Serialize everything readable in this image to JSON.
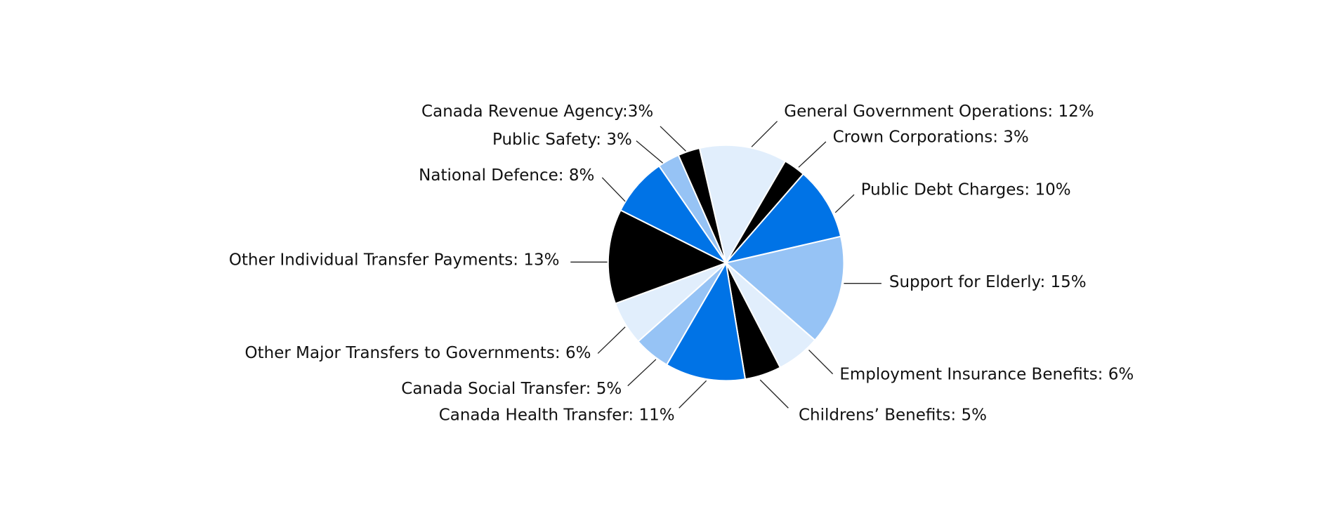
{
  "chart_data": {
    "type": "pie",
    "labels": [
      "General Government Operations: 12%",
      "Crown Corporations: 3%",
      "Public Debt Charges: 10%",
      "Support for Elderly: 15%",
      "Employment Insurance Benefits: 6%",
      "Childrens’ Benefits: 5%",
      "Canada Health Transfer: 11%",
      "Canada Social Transfer: 5%",
      "Other Major Transfers to Governments: 6%",
      "Other Individual Transfer Payments: 13%",
      "National Defence: 8%",
      "Public Safety: 3%",
      "Canada Revenue Agency:3%"
    ],
    "values": [
      12,
      3,
      10,
      15,
      6,
      5,
      11,
      5,
      6,
      13,
      8,
      3,
      3
    ],
    "colors": [
      "#e1eefc",
      "#000000",
      "#0073e6",
      "#96c3f5",
      "#e1eefc",
      "#000000",
      "#0073e6",
      "#96c3f5",
      "#e1eefc",
      "#000000",
      "#0073e6",
      "#96c3f5",
      "#000000"
    ]
  }
}
